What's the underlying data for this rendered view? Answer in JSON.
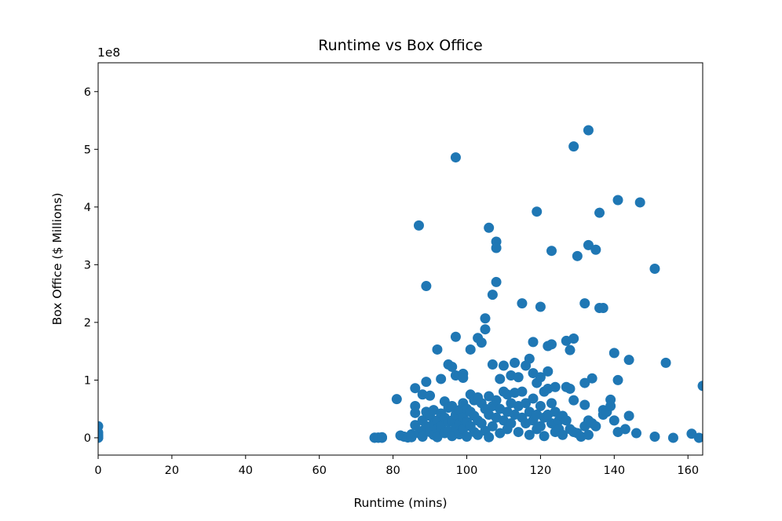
{
  "chart_data": {
    "type": "scatter",
    "title": "Runtime vs Box Office",
    "xlabel": "Runtime (mins)",
    "ylabel": "Box Office ($ Millions)",
    "y_offset_label": "1e8",
    "xlim": [
      0,
      164
    ],
    "ylim": [
      -30000000,
      650000000
    ],
    "xticks": [
      0,
      20,
      40,
      60,
      80,
      100,
      120,
      140,
      160
    ],
    "yticks": [
      0,
      100000000,
      200000000,
      300000000,
      400000000,
      500000000,
      600000000
    ],
    "ytick_labels": [
      "0",
      "1",
      "2",
      "3",
      "4",
      "5",
      "6"
    ],
    "grid": false,
    "marker_color": "#1f77b4",
    "points": [
      [
        0,
        0
      ],
      [
        0,
        500000
      ],
      [
        0,
        2500000
      ],
      [
        0,
        5000000
      ],
      [
        0,
        9000000
      ],
      [
        0,
        20000000
      ],
      [
        75,
        0
      ],
      [
        75,
        200000
      ],
      [
        76,
        0
      ],
      [
        76,
        500000
      ],
      [
        77,
        0
      ],
      [
        77,
        1000000
      ],
      [
        81,
        67000000
      ],
      [
        82,
        4000000
      ],
      [
        83,
        2000000
      ],
      [
        84,
        500000
      ],
      [
        85,
        6000000
      ],
      [
        85,
        1000000
      ],
      [
        86,
        86000000
      ],
      [
        86,
        55000000
      ],
      [
        86,
        43000000
      ],
      [
        86,
        22000000
      ],
      [
        87,
        368000000
      ],
      [
        87,
        8000000
      ],
      [
        88,
        75000000
      ],
      [
        88,
        30000000
      ],
      [
        88,
        12000000
      ],
      [
        88,
        2000000
      ],
      [
        89,
        263000000
      ],
      [
        89,
        97000000
      ],
      [
        89,
        45000000
      ],
      [
        89,
        20000000
      ],
      [
        90,
        73000000
      ],
      [
        90,
        38000000
      ],
      [
        90,
        10000000
      ],
      [
        91,
        48000000
      ],
      [
        91,
        25000000
      ],
      [
        91,
        5000000
      ],
      [
        92,
        153000000
      ],
      [
        92,
        30000000
      ],
      [
        92,
        15000000
      ],
      [
        92,
        1000000
      ],
      [
        93,
        102000000
      ],
      [
        93,
        42000000
      ],
      [
        93,
        20000000
      ],
      [
        94,
        63000000
      ],
      [
        94,
        35000000
      ],
      [
        94,
        8000000
      ],
      [
        95,
        127000000
      ],
      [
        95,
        52000000
      ],
      [
        95,
        28000000
      ],
      [
        95,
        12000000
      ],
      [
        96,
        123000000
      ],
      [
        96,
        55000000
      ],
      [
        96,
        30000000
      ],
      [
        96,
        3000000
      ],
      [
        97,
        486000000
      ],
      [
        97,
        175000000
      ],
      [
        97,
        108000000
      ],
      [
        97,
        40000000
      ],
      [
        97,
        18000000
      ],
      [
        98,
        48000000
      ],
      [
        98,
        25000000
      ],
      [
        98,
        6000000
      ],
      [
        99,
        111000000
      ],
      [
        99,
        104000000
      ],
      [
        99,
        60000000
      ],
      [
        99,
        35000000
      ],
      [
        99,
        15000000
      ],
      [
        100,
        50000000
      ],
      [
        100,
        28000000
      ],
      [
        100,
        2000000
      ],
      [
        101,
        153000000
      ],
      [
        101,
        75000000
      ],
      [
        101,
        45000000
      ],
      [
        101,
        20000000
      ],
      [
        102,
        65000000
      ],
      [
        102,
        38000000
      ],
      [
        102,
        10000000
      ],
      [
        103,
        173000000
      ],
      [
        103,
        70000000
      ],
      [
        103,
        30000000
      ],
      [
        103,
        5000000
      ],
      [
        104,
        165000000
      ],
      [
        104,
        60000000
      ],
      [
        104,
        25000000
      ],
      [
        105,
        207000000
      ],
      [
        105,
        188000000
      ],
      [
        105,
        50000000
      ],
      [
        105,
        12000000
      ],
      [
        106,
        364000000
      ],
      [
        106,
        72000000
      ],
      [
        106,
        40000000
      ],
      [
        106,
        1000000
      ],
      [
        107,
        248000000
      ],
      [
        107,
        127000000
      ],
      [
        107,
        55000000
      ],
      [
        107,
        20000000
      ],
      [
        108,
        340000000
      ],
      [
        108,
        329000000
      ],
      [
        108,
        270000000
      ],
      [
        108,
        65000000
      ],
      [
        108,
        35000000
      ],
      [
        109,
        102000000
      ],
      [
        109,
        50000000
      ],
      [
        109,
        8000000
      ],
      [
        110,
        125000000
      ],
      [
        110,
        80000000
      ],
      [
        110,
        30000000
      ],
      [
        111,
        75000000
      ],
      [
        111,
        45000000
      ],
      [
        111,
        15000000
      ],
      [
        112,
        108000000
      ],
      [
        112,
        60000000
      ],
      [
        112,
        25000000
      ],
      [
        113,
        130000000
      ],
      [
        113,
        78000000
      ],
      [
        113,
        40000000
      ],
      [
        114,
        105000000
      ],
      [
        114,
        55000000
      ],
      [
        114,
        10000000
      ],
      [
        115,
        233000000
      ],
      [
        115,
        80000000
      ],
      [
        115,
        35000000
      ],
      [
        116,
        125000000
      ],
      [
        116,
        60000000
      ],
      [
        116,
        25000000
      ],
      [
        117,
        137000000
      ],
      [
        117,
        45000000
      ],
      [
        117,
        5000000
      ],
      [
        118,
        166000000
      ],
      [
        118,
        112000000
      ],
      [
        118,
        68000000
      ],
      [
        118,
        30000000
      ],
      [
        119,
        392000000
      ],
      [
        119,
        95000000
      ],
      [
        119,
        40000000
      ],
      [
        119,
        15000000
      ],
      [
        120,
        227000000
      ],
      [
        120,
        105000000
      ],
      [
        120,
        55000000
      ],
      [
        120,
        20000000
      ],
      [
        121,
        80000000
      ],
      [
        121,
        35000000
      ],
      [
        121,
        3000000
      ],
      [
        122,
        159000000
      ],
      [
        122,
        115000000
      ],
      [
        122,
        85000000
      ],
      [
        122,
        40000000
      ],
      [
        123,
        324000000
      ],
      [
        123,
        162000000
      ],
      [
        123,
        60000000
      ],
      [
        123,
        25000000
      ],
      [
        124,
        88000000
      ],
      [
        124,
        45000000
      ],
      [
        124,
        10000000
      ],
      [
        125,
        30000000
      ],
      [
        125,
        15000000
      ],
      [
        126,
        38000000
      ],
      [
        126,
        5000000
      ],
      [
        127,
        168000000
      ],
      [
        127,
        88000000
      ],
      [
        127,
        30000000
      ],
      [
        128,
        152000000
      ],
      [
        128,
        85000000
      ],
      [
        128,
        15000000
      ],
      [
        129,
        505000000
      ],
      [
        129,
        172000000
      ],
      [
        129,
        65000000
      ],
      [
        129,
        10000000
      ],
      [
        130,
        315000000
      ],
      [
        130,
        8000000
      ],
      [
        131,
        2000000
      ],
      [
        132,
        233000000
      ],
      [
        132,
        95000000
      ],
      [
        132,
        57000000
      ],
      [
        132,
        20000000
      ],
      [
        133,
        533000000
      ],
      [
        133,
        334000000
      ],
      [
        133,
        30000000
      ],
      [
        133,
        5000000
      ],
      [
        134,
        103000000
      ],
      [
        134,
        25000000
      ],
      [
        135,
        326000000
      ],
      [
        135,
        20000000
      ],
      [
        136,
        390000000
      ],
      [
        136,
        225000000
      ],
      [
        137,
        225000000
      ],
      [
        137,
        48000000
      ],
      [
        137,
        40000000
      ],
      [
        138,
        45000000
      ],
      [
        139,
        66000000
      ],
      [
        139,
        55000000
      ],
      [
        140,
        147000000
      ],
      [
        140,
        30000000
      ],
      [
        141,
        412000000
      ],
      [
        141,
        100000000
      ],
      [
        141,
        10000000
      ],
      [
        143,
        15000000
      ],
      [
        144,
        135000000
      ],
      [
        144,
        38000000
      ],
      [
        146,
        8000000
      ],
      [
        147,
        408000000
      ],
      [
        151,
        293000000
      ],
      [
        151,
        2000000
      ],
      [
        154,
        130000000
      ],
      [
        156,
        0
      ],
      [
        161,
        7000000
      ],
      [
        163,
        0
      ],
      [
        164,
        90000000
      ]
    ]
  }
}
